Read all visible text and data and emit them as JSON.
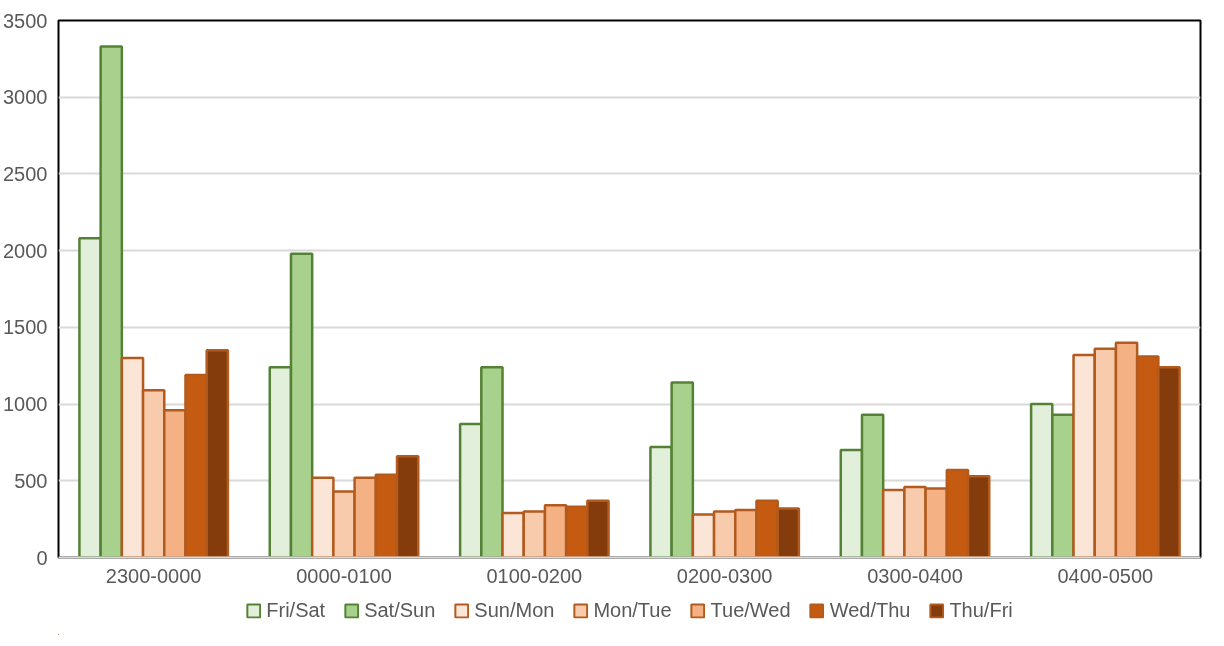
{
  "chart_data": {
    "type": "bar",
    "categories": [
      "2300-0000",
      "0000-0100",
      "0100-0200",
      "0200-0300",
      "0300-0400",
      "0400-0500"
    ],
    "series": [
      {
        "name": "Fri/Sat",
        "color": "#e2efda",
        "values": [
          2080,
          1240,
          870,
          720,
          700,
          1000
        ]
      },
      {
        "name": "Sat/Sun",
        "color": "#a9d18e",
        "values": [
          3330,
          1980,
          1240,
          1140,
          930,
          930
        ]
      },
      {
        "name": "Sun/Mon",
        "color": "#fbe5d6",
        "values": [
          1300,
          520,
          290,
          280,
          440,
          1320
        ]
      },
      {
        "name": "Mon/Tue",
        "color": "#f8cbad",
        "values": [
          1090,
          430,
          300,
          300,
          460,
          1360
        ]
      },
      {
        "name": "Tue/Wed",
        "color": "#f4b183",
        "values": [
          960,
          520,
          340,
          310,
          450,
          1400
        ]
      },
      {
        "name": "Wed/Thu",
        "color": "#c55a11",
        "values": [
          1190,
          540,
          330,
          370,
          570,
          1310
        ]
      },
      {
        "name": "Thu/Fri",
        "color": "#843c0c",
        "values": [
          1350,
          660,
          370,
          320,
          530,
          1240
        ]
      }
    ],
    "ylim": [
      0,
      3500
    ],
    "yticks": [
      0,
      500,
      1000,
      1500,
      2000,
      2500,
      3000,
      3500
    ],
    "grid": "y",
    "legend": "bottom"
  }
}
